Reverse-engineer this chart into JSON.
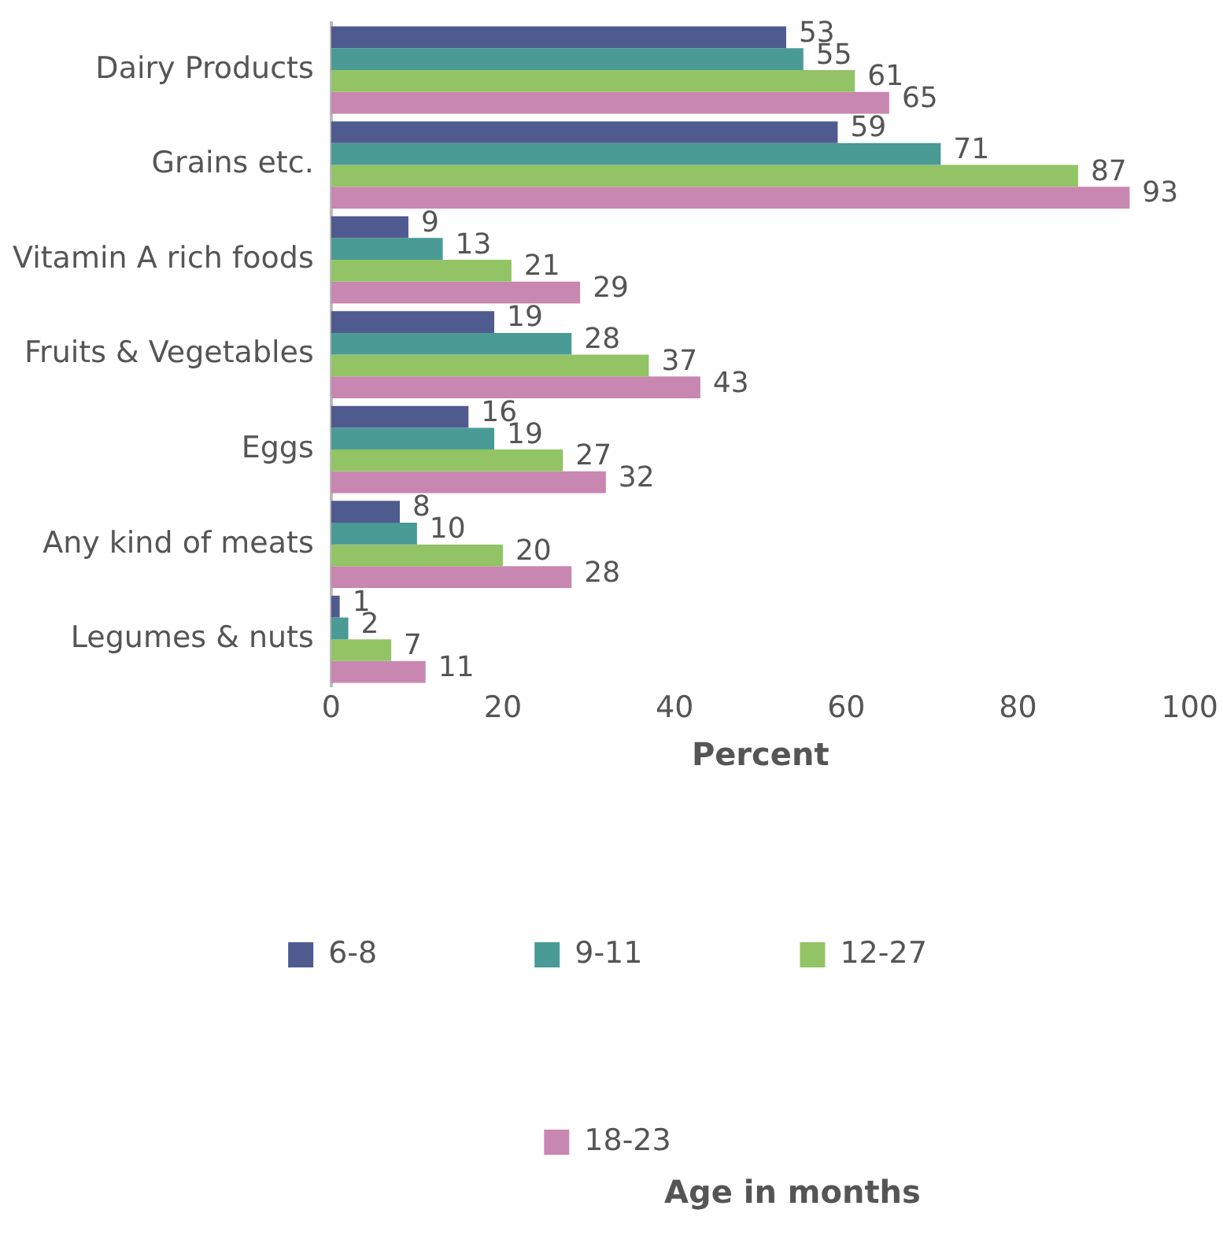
{
  "chart_data": {
    "type": "bar",
    "orientation": "horizontal",
    "xlabel": "Percent",
    "legend_title": "Age in months",
    "legend": "bottom",
    "grid": false,
    "data_labels": true,
    "categories": [
      "Dairy Products",
      "Grains etc.",
      "Vitamin A rich foods",
      "Fruits & Vegetables",
      "Eggs",
      "Any kind of meats",
      "Legumes & nuts"
    ],
    "xlim": [
      0,
      100
    ],
    "xticks": [
      0,
      20,
      40,
      60,
      80,
      100
    ],
    "series": [
      {
        "name": "6-8",
        "color": "#4f5b8e",
        "values": [
          53,
          59,
          9,
          19,
          16,
          8,
          1
        ]
      },
      {
        "name": "9-11",
        "color": "#4a9a96",
        "values": [
          55,
          71,
          13,
          28,
          19,
          10,
          2
        ]
      },
      {
        "name": "12-27",
        "color": "#92c465",
        "values": [
          61,
          87,
          21,
          37,
          27,
          20,
          7
        ]
      },
      {
        "name": "18-23",
        "color": "#c887b0",
        "values": [
          65,
          93,
          29,
          43,
          32,
          28,
          11
        ]
      }
    ]
  }
}
